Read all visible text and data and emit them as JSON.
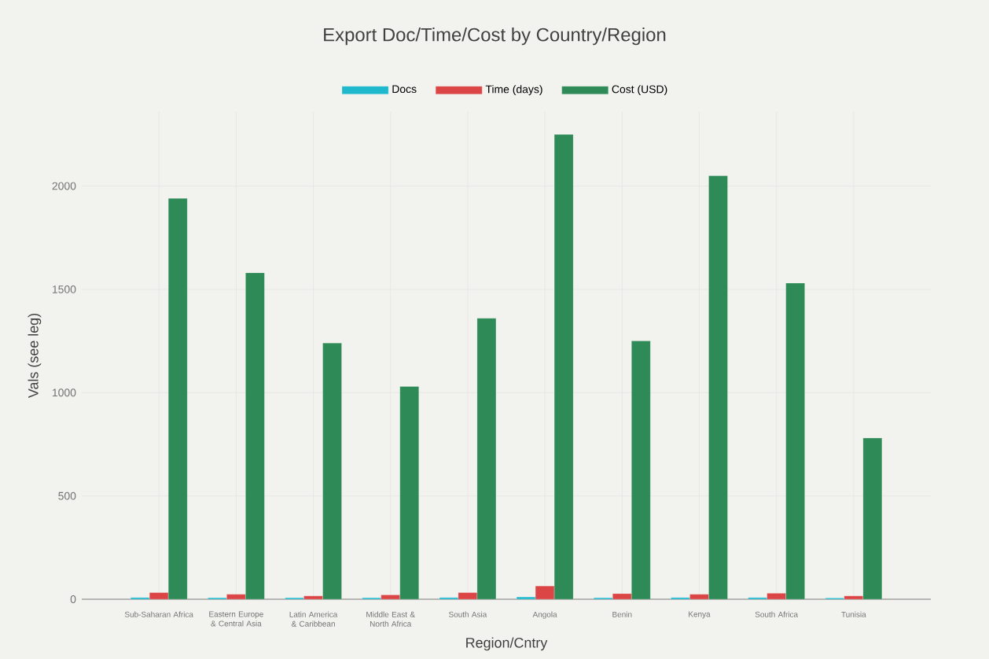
{
  "chart_data": {
    "type": "bar",
    "title": "Export Doc/Time/Cost by Country/Region",
    "xlabel": "Region/Cntry",
    "ylabel": "Vals (see leg)",
    "categories": [
      "Sub-Saharan Africa",
      "Eastern Europe & Central Asia",
      "Latin America & Caribbean",
      "Middle East & North Africa",
      "South Asia",
      "Angola",
      "Benin",
      "Kenya",
      "South Africa",
      "Tunisia"
    ],
    "series": [
      {
        "name": "Docs",
        "color": "#1fb8cd",
        "values": [
          8,
          7,
          7,
          7,
          8,
          11,
          7,
          8,
          8,
          6
        ]
      },
      {
        "name": "Time (days)",
        "color": "#db4545",
        "values": [
          32,
          24,
          16,
          21,
          32,
          64,
          27,
          24,
          29,
          16
        ]
      },
      {
        "name": "Cost (USD)",
        "color": "#2e8b57",
        "values": [
          1940,
          1580,
          1240,
          1030,
          1360,
          2250,
          1250,
          2050,
          1530,
          780
        ]
      }
    ],
    "ylim": [
      0,
      2360
    ],
    "yticks": [
      0,
      500,
      1000,
      1500,
      2000
    ],
    "grid": true,
    "legend": "top"
  }
}
